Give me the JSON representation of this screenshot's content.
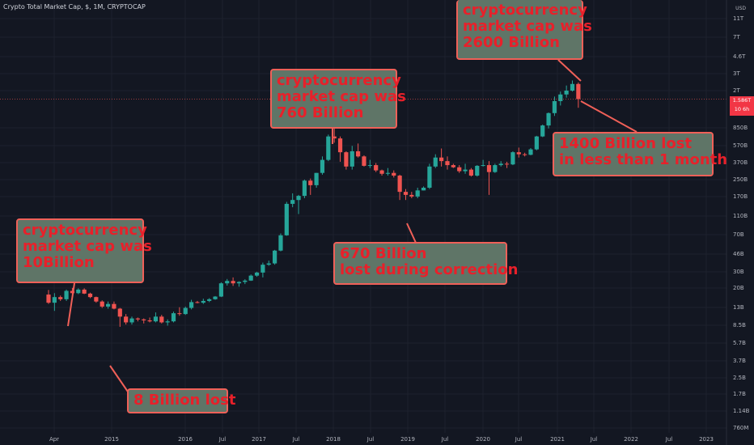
{
  "header": {
    "symbol": "Crypto Total Market Cap, $, 1M, CRYPTOCAP"
  },
  "price_axis": {
    "currency": "USD",
    "current_value": "1.586T",
    "countdown": "10 6h"
  },
  "colors": {
    "background": "#131722",
    "up": "#26a69a",
    "down": "#ef5350",
    "grid": "#1e222d",
    "axis_text": "#b2b5be"
  },
  "annotations": [
    {
      "id": "10b",
      "text": "cryptocurrency\nmarket cap was\n10Billion"
    },
    {
      "id": "8b",
      "text": "8 Billion lost"
    },
    {
      "id": "760b",
      "text": "cryptocurrency\nmarket cap was\n760 Billion"
    },
    {
      "id": "670b",
      "text": "670 Billion\nlost during correction"
    },
    {
      "id": "2600b",
      "text": "cryptocurrency\nmarket cap was\n2600 Billion"
    },
    {
      "id": "1400b",
      "text": "1400 Billion lost\nin less than 1 month"
    }
  ],
  "chart_data": {
    "type": "candlestick",
    "title": "Crypto Total Market Cap, $, 1M, CRYPTOCAP",
    "interval": "1M",
    "y_scale": "log",
    "ylim_billions": [
      760,
      11000
    ],
    "xlim": [
      "2014-01",
      "2023-03"
    ],
    "y_ticks": [
      "11T",
      "7T",
      "4.6T",
      "3T",
      "2T",
      "850B",
      "570B",
      "370B",
      "250B",
      "170B",
      "110B",
      "70B",
      "46B",
      "30B",
      "20B",
      "13B",
      "8.5B",
      "5.7B",
      "3.7B",
      "2.5B",
      "1.7B",
      "1.14B",
      "760M"
    ],
    "x_ticks": [
      "Apr",
      "2015",
      "2016",
      "Jul",
      "2017",
      "Jul",
      "2018",
      "Jul",
      "2019",
      "Jul",
      "2020",
      "Jul",
      "2021",
      "Jul",
      "2022",
      "Jul",
      "2023"
    ],
    "candles_billions": [
      [
        7.5,
        8.5,
        5.8,
        6.0
      ],
      [
        6.0,
        7.8,
        4.8,
        7.0
      ],
      [
        7.0,
        7.3,
        6.3,
        6.6
      ],
      [
        6.6,
        8.6,
        6.3,
        8.3
      ],
      [
        8.3,
        9.0,
        7.6,
        7.8
      ],
      [
        7.8,
        8.9,
        7.6,
        8.6
      ],
      [
        8.6,
        8.9,
        7.6,
        7.7
      ],
      [
        7.7,
        7.9,
        6.8,
        7.0
      ],
      [
        7.0,
        7.1,
        6.0,
        6.2
      ],
      [
        6.2,
        6.4,
        5.2,
        5.4
      ],
      [
        5.4,
        6.2,
        5.1,
        5.8
      ],
      [
        5.8,
        6.2,
        5.0,
        5.1
      ],
      [
        5.1,
        5.2,
        3.1,
        4.1
      ],
      [
        4.1,
        4.4,
        3.3,
        3.5
      ],
      [
        3.5,
        4.1,
        3.3,
        3.9
      ],
      [
        3.9,
        4.0,
        3.6,
        3.8
      ],
      [
        3.8,
        3.9,
        3.4,
        3.7
      ],
      [
        3.7,
        4.0,
        3.5,
        3.6
      ],
      [
        3.6,
        4.6,
        3.5,
        4.1
      ],
      [
        4.1,
        4.3,
        3.4,
        3.5
      ],
      [
        3.5,
        3.8,
        3.2,
        3.6
      ],
      [
        3.6,
        4.7,
        3.5,
        4.5
      ],
      [
        4.5,
        5.3,
        4.2,
        4.4
      ],
      [
        4.4,
        5.4,
        4.3,
        5.2
      ],
      [
        5.2,
        6.5,
        5.0,
        6.1
      ],
      [
        6.1,
        6.3,
        5.9,
        6.0
      ],
      [
        6.0,
        6.7,
        5.8,
        6.3
      ],
      [
        6.3,
        6.8,
        6.1,
        6.6
      ],
      [
        6.6,
        7.2,
        6.5,
        7.1
      ],
      [
        7.1,
        10.5,
        7.0,
        10.2
      ],
      [
        10.2,
        11.5,
        9.6,
        10.9
      ],
      [
        10.9,
        12.0,
        9.5,
        10.2
      ],
      [
        10.2,
        10.8,
        9.3,
        10.6
      ],
      [
        10.6,
        11.4,
        10.0,
        11.0
      ],
      [
        11.0,
        13.0,
        10.9,
        12.6
      ],
      [
        12.6,
        14.0,
        12.2,
        13.7
      ],
      [
        13.7,
        18.0,
        12.0,
        17.0
      ],
      [
        17.0,
        19.0,
        16.5,
        17.6
      ],
      [
        17.6,
        25.5,
        17.0,
        25.0
      ],
      [
        25.0,
        40.0,
        24.5,
        38.0
      ],
      [
        38.0,
        95.0,
        37.5,
        90.0
      ],
      [
        90.0,
        120.0,
        82.0,
        100.0
      ],
      [
        100.0,
        115.0,
        68.0,
        112.0
      ],
      [
        112.0,
        175.0,
        105.0,
        170.0
      ],
      [
        170.0,
        180.0,
        115.0,
        150.0
      ],
      [
        150.0,
        210.0,
        140.0,
        210.0
      ],
      [
        210.0,
        330.0,
        200.0,
        300.0
      ],
      [
        300.0,
        600.0,
        290.0,
        570.0
      ],
      [
        570.0,
        830.0,
        480.0,
        540.0
      ],
      [
        540.0,
        570.0,
        285.0,
        370.0
      ],
      [
        370.0,
        380.0,
        230.0,
        250.0
      ],
      [
        250.0,
        440.0,
        230.0,
        380.0
      ],
      [
        380.0,
        470.0,
        320.0,
        330.0
      ],
      [
        330.0,
        340.0,
        250.0,
        255.0
      ],
      [
        255.0,
        300.0,
        240.0,
        260.0
      ],
      [
        260.0,
        275.0,
        215.0,
        225.0
      ],
      [
        225.0,
        230.0,
        195.0,
        205.0
      ],
      [
        205.0,
        240.0,
        195.0,
        210.0
      ],
      [
        210.0,
        225.0,
        185.0,
        195.0
      ],
      [
        195.0,
        200.0,
        100.0,
        125.0
      ],
      [
        125.0,
        135.0,
        100.0,
        115.0
      ],
      [
        115.0,
        125.0,
        105.0,
        110.0
      ],
      [
        110.0,
        140.0,
        105.0,
        130.0
      ],
      [
        130.0,
        145.0,
        130.0,
        140.0
      ],
      [
        140.0,
        270.0,
        135.0,
        250.0
      ],
      [
        250.0,
        350.0,
        240.0,
        320.0
      ],
      [
        320.0,
        410.0,
        250.0,
        290.0
      ],
      [
        290.0,
        330.0,
        230.0,
        260.0
      ],
      [
        260.0,
        270.0,
        240.0,
        245.0
      ],
      [
        245.0,
        260.0,
        210.0,
        220.0
      ],
      [
        220.0,
        270.0,
        205.0,
        230.0
      ],
      [
        230.0,
        240.0,
        190.0,
        195.0
      ],
      [
        195.0,
        260.0,
        190.0,
        255.0
      ],
      [
        255.0,
        300.0,
        250.0,
        260.0
      ],
      [
        260.0,
        290.0,
        115.0,
        215.0
      ],
      [
        215.0,
        270.0,
        210.0,
        260.0
      ],
      [
        260.0,
        290.0,
        250.0,
        270.0
      ],
      [
        270.0,
        285.0,
        240.0,
        265.0
      ],
      [
        265.0,
        380.0,
        260.0,
        370.0
      ],
      [
        370.0,
        420.0,
        320.0,
        350.0
      ],
      [
        350.0,
        365.0,
        330.0,
        345.0
      ],
      [
        345.0,
        415.0,
        340.0,
        400.0
      ],
      [
        400.0,
        580.0,
        390.0,
        570.0
      ],
      [
        570.0,
        790.0,
        560.0,
        770.0
      ],
      [
        770.0,
        1100.0,
        710.0,
        1080.0
      ],
      [
        1080.0,
        1700.0,
        1000.0,
        1500.0
      ],
      [
        1500.0,
        1950.0,
        1330.0,
        1800.0
      ],
      [
        1800.0,
        2300.0,
        1650.0,
        2000.0
      ],
      [
        2000.0,
        2640.0,
        1950.0,
        2400.0
      ],
      [
        2400.0,
        2500.0,
        1250.0,
        1586.0
      ]
    ]
  }
}
